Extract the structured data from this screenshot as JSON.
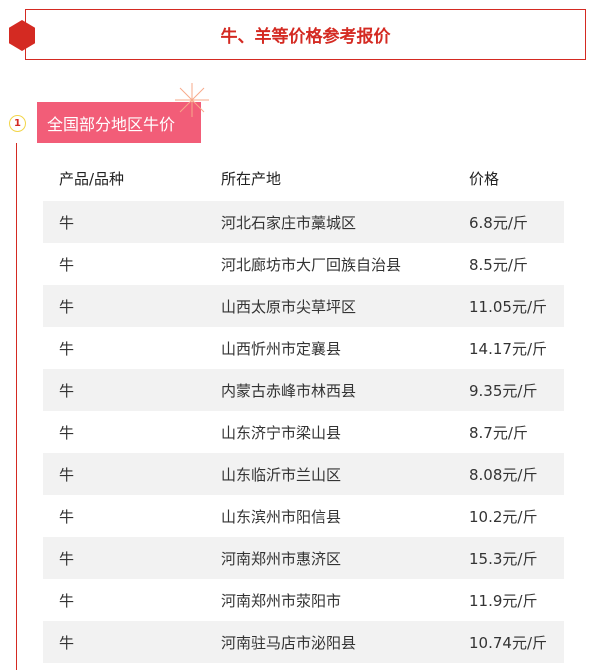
{
  "header": {
    "title": "牛、羊等价格参考报价"
  },
  "section": {
    "number": "1",
    "title": "全国部分地区牛价"
  },
  "table": {
    "columns": [
      "产品/品种",
      "所在产地",
      "价格"
    ],
    "rows": [
      [
        "牛",
        "河北石家庄市藁城区",
        "6.8元/斤"
      ],
      [
        "牛",
        "河北廊坊市大厂回族自治县",
        "8.5元/斤"
      ],
      [
        "牛",
        "山西太原市尖草坪区",
        "11.05元/斤"
      ],
      [
        "牛",
        "山西忻州市定襄县",
        "14.17元/斤"
      ],
      [
        "牛",
        "内蒙古赤峰市林西县",
        "9.35元/斤"
      ],
      [
        "牛",
        "山东济宁市梁山县",
        "8.7元/斤"
      ],
      [
        "牛",
        "山东临沂市兰山区",
        "8.08元/斤"
      ],
      [
        "牛",
        "山东滨州市阳信县",
        "10.2元/斤"
      ],
      [
        "牛",
        "河南郑州市惠济区",
        "15.3元/斤"
      ],
      [
        "牛",
        "河南郑州市荥阳市",
        "11.9元/斤"
      ],
      [
        "牛",
        "河南驻马店市泌阳县",
        "10.74元/斤"
      ]
    ]
  },
  "colors": {
    "accent": "#d42a22",
    "tag": "#f25d78",
    "stripe": "#f2f2f2"
  }
}
